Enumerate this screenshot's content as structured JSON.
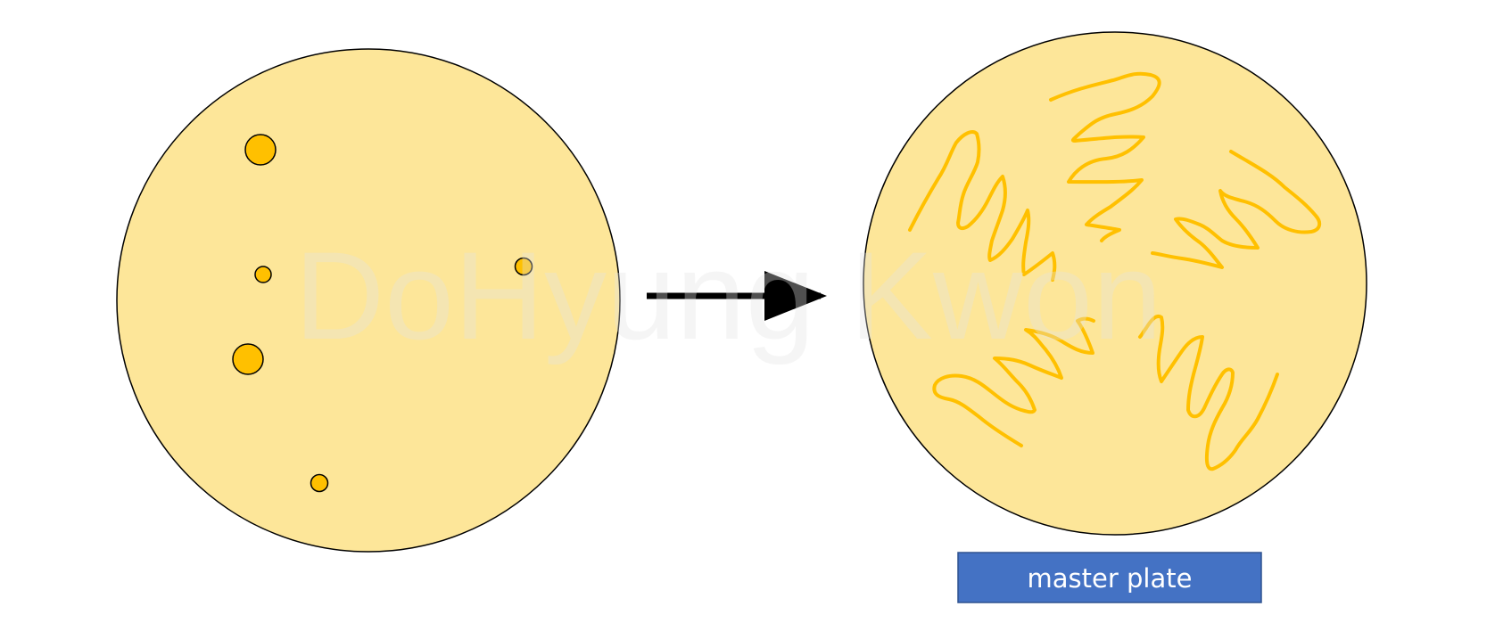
{
  "diagram": {
    "watermark": "DoHyung Kwon",
    "label": "master plate",
    "colors": {
      "plate_fill": "#fde699",
      "colony": "#ffc000",
      "label_box": "#4472c4",
      "label_text": "#ffffff",
      "arrow": "#000000"
    }
  }
}
